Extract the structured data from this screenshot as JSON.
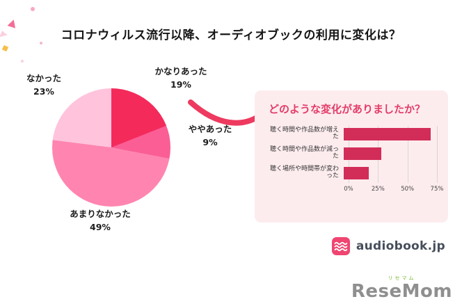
{
  "title": "コロナウィルス流行以降、オーディオブックの利用に変化は？",
  "chart_data": [
    {
      "type": "pie",
      "title": "オーディオブックの利用に変化は？",
      "slices": [
        {
          "label": "かなりあった",
          "pct_label": "19%",
          "value": 19,
          "color": "#f42a5b"
        },
        {
          "label": "ややあった",
          "pct_label": "9%",
          "value": 9,
          "color": "#fa5e95"
        },
        {
          "label": "あまりなかった",
          "pct_label": "49%",
          "value": 49,
          "color": "#ff85b0"
        },
        {
          "label": "なかった",
          "pct_label": "23%",
          "value": 23,
          "color": "#ffc3dc"
        }
      ]
    },
    {
      "type": "bar",
      "title": "どのような変化がありましたか？",
      "categories": [
        "聴く時間や作品数が増えた",
        "聴く時間や作品数が減った",
        "聴く場所や時間帯が変わった"
      ],
      "values": [
        70,
        30,
        20
      ],
      "xlim": [
        0,
        75
      ],
      "ticks": [
        "0%",
        "25%",
        "50%",
        "75%"
      ],
      "bar_color": "#d22d59",
      "panel_bg": "#fdecee",
      "legend": "none",
      "grid": "vertical"
    }
  ],
  "footer": {
    "audiobook_logo_text": "audiobook.jp",
    "resemom_text": "ReseMom",
    "resemom_kana": "リセマム"
  }
}
